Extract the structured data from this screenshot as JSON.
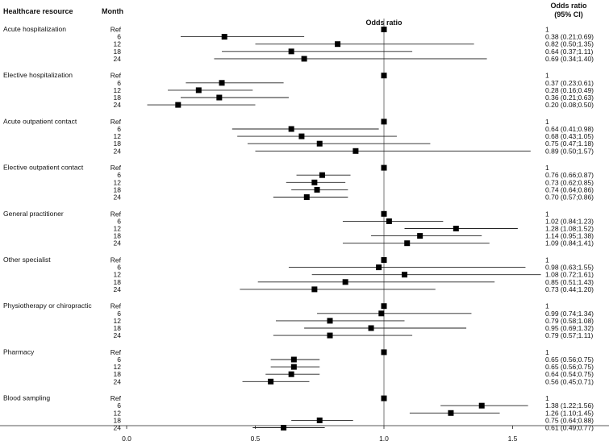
{
  "headers": {
    "resource": "Healthcare resource",
    "month": "Month",
    "odds_ratio": "Odds ratio",
    "ci_line1": "Odds ratio",
    "ci_line2": "(95% CI)"
  },
  "chart_data": {
    "type": "forest",
    "xlim": [
      0.0,
      1.65
    ],
    "xticks": [
      0.0,
      0.5,
      1.0,
      1.5
    ],
    "xtick_labels": [
      "0.0",
      "0.5",
      "1.0",
      "1.5"
    ],
    "reference_line": 1.0,
    "groups": [
      {
        "name": "Acute hospitalization",
        "rows": [
          {
            "month": "Ref",
            "or": 1,
            "lo": null,
            "hi": null,
            "label": "1"
          },
          {
            "month": "6",
            "or": 0.38,
            "lo": 0.21,
            "hi": 0.69,
            "label": "0.38 (0.21;0.69)"
          },
          {
            "month": "12",
            "or": 0.82,
            "lo": 0.5,
            "hi": 1.35,
            "label": "0.82 (0.50;1.35)"
          },
          {
            "month": "18",
            "or": 0.64,
            "lo": 0.37,
            "hi": 1.11,
            "label": "0.64 (0.37;1.11)"
          },
          {
            "month": "24",
            "or": 0.69,
            "lo": 0.34,
            "hi": 1.4,
            "label": "0.69 (0.34;1.40)"
          }
        ]
      },
      {
        "name": "Elective hospitalization",
        "rows": [
          {
            "month": "Ref",
            "or": 1,
            "lo": null,
            "hi": null,
            "label": "1"
          },
          {
            "month": "6",
            "or": 0.37,
            "lo": 0.23,
            "hi": 0.61,
            "label": "0.37 (0.23;0.61)"
          },
          {
            "month": "12",
            "or": 0.28,
            "lo": 0.16,
            "hi": 0.49,
            "label": "0.28 (0.16;0.49)"
          },
          {
            "month": "18",
            "or": 0.36,
            "lo": 0.21,
            "hi": 0.63,
            "label": "0.36 (0.21;0.63)"
          },
          {
            "month": "24",
            "or": 0.2,
            "lo": 0.08,
            "hi": 0.5,
            "label": "0.20 (0.08;0.50)"
          }
        ]
      },
      {
        "name": "Acute outpatient contact",
        "rows": [
          {
            "month": "Ref",
            "or": 1,
            "lo": null,
            "hi": null,
            "label": "1"
          },
          {
            "month": "6",
            "or": 0.64,
            "lo": 0.41,
            "hi": 0.98,
            "label": "0.64 (0.41;0.98)"
          },
          {
            "month": "12",
            "or": 0.68,
            "lo": 0.43,
            "hi": 1.05,
            "label": "0.68 (0.43;1.05)"
          },
          {
            "month": "18",
            "or": 0.75,
            "lo": 0.47,
            "hi": 1.18,
            "label": "0.75 (0.47;1.18)"
          },
          {
            "month": "24",
            "or": 0.89,
            "lo": 0.5,
            "hi": 1.57,
            "label": "0.89 (0.50;1.57)"
          }
        ]
      },
      {
        "name": "Elective outpatient contact",
        "rows": [
          {
            "month": "Ref",
            "or": 1,
            "lo": null,
            "hi": null,
            "label": "1"
          },
          {
            "month": "6",
            "or": 0.76,
            "lo": 0.66,
            "hi": 0.87,
            "label": "0.76 (0.66;0.87)"
          },
          {
            "month": "12",
            "or": 0.73,
            "lo": 0.62,
            "hi": 0.85,
            "label": "0.73 (0.62;0.85)"
          },
          {
            "month": "18",
            "or": 0.74,
            "lo": 0.64,
            "hi": 0.86,
            "label": "0.74 (0.64;0.86)"
          },
          {
            "month": "24",
            "or": 0.7,
            "lo": 0.57,
            "hi": 0.86,
            "label": "0.70 (0.57;0.86)"
          }
        ]
      },
      {
        "name": "General practitioner",
        "rows": [
          {
            "month": "Ref",
            "or": 1,
            "lo": null,
            "hi": null,
            "label": "1"
          },
          {
            "month": "6",
            "or": 1.02,
            "lo": 0.84,
            "hi": 1.23,
            "label": "1.02 (0.84;1.23)"
          },
          {
            "month": "12",
            "or": 1.28,
            "lo": 1.08,
            "hi": 1.52,
            "label": "1.28 (1.08;1.52)"
          },
          {
            "month": "18",
            "or": 1.14,
            "lo": 0.95,
            "hi": 1.38,
            "label": "1.14 (0.95;1.38)"
          },
          {
            "month": "24",
            "or": 1.09,
            "lo": 0.84,
            "hi": 1.41,
            "label": "1.09 (0.84;1.41)"
          }
        ]
      },
      {
        "name": "Other specialist",
        "rows": [
          {
            "month": "Ref",
            "or": 1,
            "lo": null,
            "hi": null,
            "label": "1"
          },
          {
            "month": "6",
            "or": 0.98,
            "lo": 0.63,
            "hi": 1.55,
            "label": "0.98 (0.63;1.55)"
          },
          {
            "month": "12",
            "or": 1.08,
            "lo": 0.72,
            "hi": 1.61,
            "label": "1.08 (0.72;1.61)"
          },
          {
            "month": "18",
            "or": 0.85,
            "lo": 0.51,
            "hi": 1.43,
            "label": "0.85 (0.51;1.43)"
          },
          {
            "month": "24",
            "or": 0.73,
            "lo": 0.44,
            "hi": 1.2,
            "label": "0.73 (0.44;1.20)"
          }
        ]
      },
      {
        "name": "Physiotherapy or chiropractic",
        "rows": [
          {
            "month": "Ref",
            "or": 1,
            "lo": null,
            "hi": null,
            "label": "1"
          },
          {
            "month": "6",
            "or": 0.99,
            "lo": 0.74,
            "hi": 1.34,
            "label": "0.99 (0.74;1.34)"
          },
          {
            "month": "12",
            "or": 0.79,
            "lo": 0.58,
            "hi": 1.08,
            "label": "0.79 (0.58;1.08)"
          },
          {
            "month": "18",
            "or": 0.95,
            "lo": 0.69,
            "hi": 1.32,
            "label": "0.95 (0.69;1.32)"
          },
          {
            "month": "24",
            "or": 0.79,
            "lo": 0.57,
            "hi": 1.11,
            "label": "0.79 (0.57;1.11)"
          }
        ]
      },
      {
        "name": "Pharmacy",
        "rows": [
          {
            "month": "Ref",
            "or": 1,
            "lo": null,
            "hi": null,
            "label": "1"
          },
          {
            "month": "6",
            "or": 0.65,
            "lo": 0.56,
            "hi": 0.75,
            "label": "0.65 (0.56;0.75)"
          },
          {
            "month": "12",
            "or": 0.65,
            "lo": 0.56,
            "hi": 0.75,
            "label": "0.65 (0.56;0.75)"
          },
          {
            "month": "18",
            "or": 0.64,
            "lo": 0.54,
            "hi": 0.75,
            "label": "0.64 (0.54;0.75)"
          },
          {
            "month": "24",
            "or": 0.56,
            "lo": 0.45,
            "hi": 0.71,
            "label": "0.56 (0.45;0.71)"
          }
        ]
      },
      {
        "name": "Blood sampling",
        "rows": [
          {
            "month": "Ref",
            "or": 1,
            "lo": null,
            "hi": null,
            "label": "1"
          },
          {
            "month": "6",
            "or": 1.38,
            "lo": 1.22,
            "hi": 1.56,
            "label": "1.38 (1.22;1.56)"
          },
          {
            "month": "12",
            "or": 1.26,
            "lo": 1.1,
            "hi": 1.45,
            "label": "1.26 (1.10;1.45)"
          },
          {
            "month": "18",
            "or": 0.75,
            "lo": 0.64,
            "hi": 0.88,
            "label": "0.75 (0.64;0.88)"
          },
          {
            "month": "24",
            "or": 0.61,
            "lo": 0.49,
            "hi": 0.77,
            "label": "0.61 (0.49;0.77)"
          }
        ]
      }
    ]
  }
}
